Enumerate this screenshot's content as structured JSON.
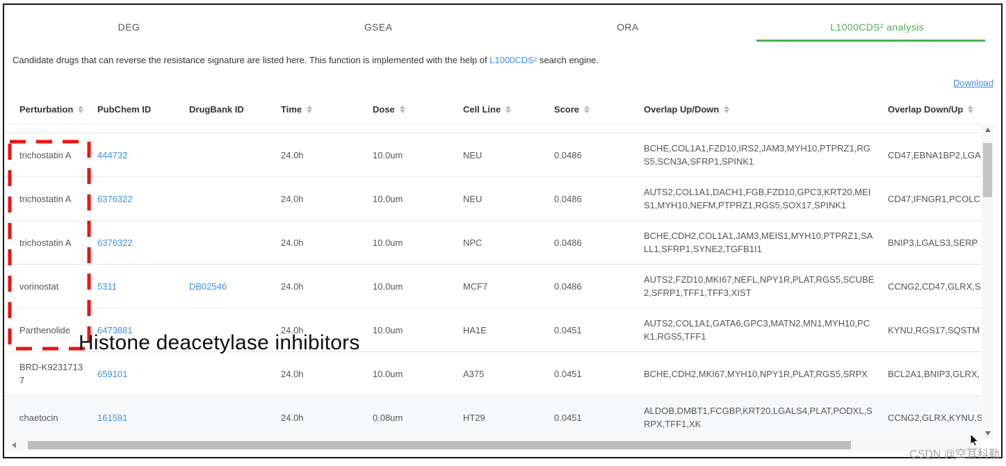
{
  "tabs": [
    {
      "label": "DEG",
      "active": false
    },
    {
      "label": "GSEA",
      "active": false
    },
    {
      "label": "ORA",
      "active": false
    },
    {
      "label": "L1000CDS² analysis",
      "active": true
    }
  ],
  "description": {
    "prefix": "Candidate drugs that can reverse the resistance signature are listed here. This function is implemented with the help of ",
    "link": "L1000CDS²",
    "suffix": " search engine."
  },
  "download_label": "Download",
  "table": {
    "columns": [
      {
        "label": "Perturbation",
        "sortable": true,
        "key": "perturbation"
      },
      {
        "label": "PubChem ID",
        "sortable": false,
        "key": "pubchem_id"
      },
      {
        "label": "DrugBank ID",
        "sortable": false,
        "key": "drugbank_id"
      },
      {
        "label": "Time",
        "sortable": true,
        "key": "time"
      },
      {
        "label": "Dose",
        "sortable": true,
        "key": "dose"
      },
      {
        "label": "Cell Line",
        "sortable": true,
        "key": "cell_line"
      },
      {
        "label": "Score",
        "sortable": true,
        "key": "score"
      },
      {
        "label": "Overlap Up/Down",
        "sortable": true,
        "key": "overlap_up_down"
      },
      {
        "label": "Overlap Down/Up",
        "sortable": true,
        "key": "overlap_down_up"
      }
    ],
    "rows": [
      {
        "perturbation": "trichostatin A",
        "pubchem_id": "444732",
        "drugbank_id": "",
        "time": "24.0h",
        "dose": "10.0um",
        "cell_line": "NEU",
        "score": "0.0486",
        "overlap_up_down": "BCHE,COL1A1,FZD10,IRS2,JAM3,MYH10,PTPRZ1,RGS5,SCN3A,SFRP1,SPINK1",
        "overlap_down_up": "CD47,EBNA1BP2,LGA"
      },
      {
        "perturbation": "trichostatin A",
        "pubchem_id": "6376322",
        "drugbank_id": "",
        "time": "24.0h",
        "dose": "10.0um",
        "cell_line": "NEU",
        "score": "0.0486",
        "overlap_up_down": "AUTS2,COL1A1,DACH1,FGB,FZD10,GPC3,KRT20,MEIS1,MYH10,NEFM,PTPRZ1,RGS5,SOX17,SPINK1",
        "overlap_down_up": "CD47,IFNGR1,PCOLC"
      },
      {
        "perturbation": "trichostatin A",
        "pubchem_id": "6376322",
        "drugbank_id": "",
        "time": "24.0h",
        "dose": "10.0um",
        "cell_line": "NPC",
        "score": "0.0486",
        "overlap_up_down": "BCHE,CDH2,COL1A1,JAM3,MEIS1,MYH10,PTPRZ1,SALL1,SFRP1,SYNE2,TGFB1I1",
        "overlap_down_up": "BNIP3,LGALS3,SERP"
      },
      {
        "perturbation": "vorinostat",
        "pubchem_id": "5311",
        "drugbank_id": "DB02546",
        "time": "24.0h",
        "dose": "10.0um",
        "cell_line": "MCF7",
        "score": "0.0486",
        "overlap_up_down": "AUTS2,FZD10,MKI67,NEFL,NPY1R,PLAT,RGS5,SCUBE2,SFRP1,TFF1,TFF3,XIST",
        "overlap_down_up": "CCNG2,CD47,GLRX,S"
      },
      {
        "perturbation": "Parthenolide",
        "pubchem_id": "6473881",
        "drugbank_id": "",
        "time": "24.0h",
        "dose": "10.0um",
        "cell_line": "HA1E",
        "score": "0.0451",
        "overlap_up_down": "AUTS2,COL1A1,GATA6,GPC3,MATN2,MN1,MYH10,PCK1,RGS5,TFF1",
        "overlap_down_up": "KYNU,RGS17,SQSTM"
      },
      {
        "perturbation": "BRD-K92317137",
        "pubchem_id": "659101",
        "drugbank_id": "",
        "time": "24.0h",
        "dose": "10.0um",
        "cell_line": "A375",
        "score": "0.0451",
        "overlap_up_down": "BCHE,CDH2,MKI67,MYH10,NPY1R,PLAT,RGS5,SRPX",
        "overlap_down_up": "BCL2A1,BNIP3,GLRX,"
      },
      {
        "perturbation": "chaetocin",
        "pubchem_id": "161591",
        "drugbank_id": "",
        "time": "24.0h",
        "dose": "0.08um",
        "cell_line": "HT29",
        "score": "0.0451",
        "overlap_up_down": "ALDOB,DMBT1,FCGBP,KRT20,LGALS4,PLAT,PODXL,SRPX,TFF1,XK",
        "overlap_down_up": "CCNG2,GLRX,KYNU,S"
      }
    ]
  },
  "annotation": {
    "label": "Histone deacetylase inhibitors",
    "box_color": "#ec1313"
  },
  "watermark": "CSDN @空耳科勒",
  "colors": {
    "accent_green": "#4caf50",
    "link_blue": "#3d8ef0",
    "annotation_red": "#ec1313"
  }
}
